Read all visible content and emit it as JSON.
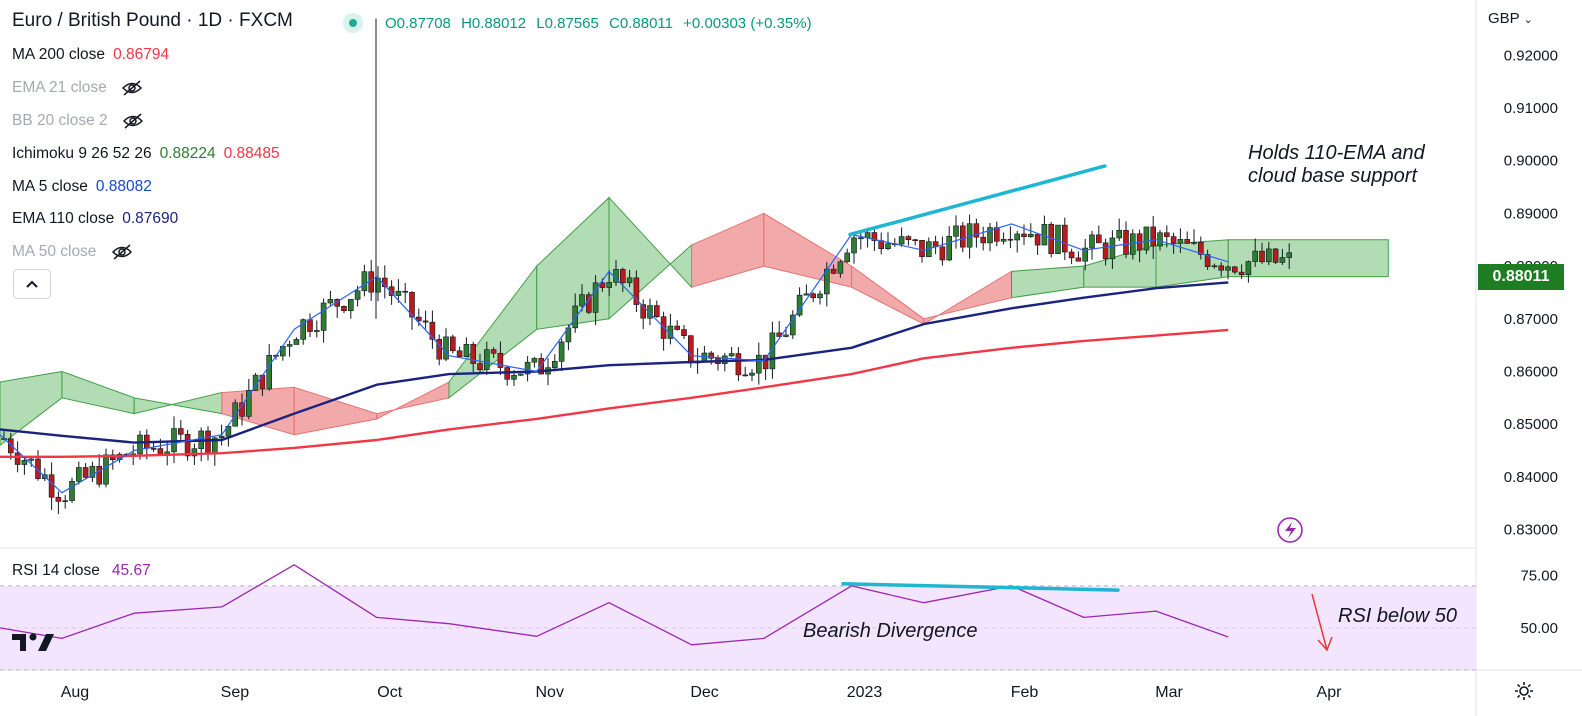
{
  "header": {
    "title": "Euro / British Pound · 1D · FXCM",
    "ohlc": [
      "O0.87708",
      "H0.88012",
      "L0.87565",
      "C0.88011",
      "+0.00303 (+0.35%)"
    ],
    "currency": "GBP"
  },
  "indicators": [
    {
      "label": "MA 200 close",
      "values": [
        "0.86794"
      ],
      "colors": [
        "#f23645"
      ],
      "hidden": false
    },
    {
      "label": "EMA 21 close",
      "values": [],
      "hidden": true
    },
    {
      "label": "BB 20 close 2",
      "values": [],
      "hidden": true
    },
    {
      "label": "Ichimoku 9 26 52 26",
      "values": [
        "0.88224",
        "0.88485"
      ],
      "colors": [
        "#2e7d32",
        "#f23645"
      ],
      "hidden": false
    },
    {
      "label": "MA 5 close",
      "values": [
        "0.88082"
      ],
      "colors": [
        "#1848cc"
      ],
      "hidden": false
    },
    {
      "label": "EMA 110 close",
      "values": [
        "0.87690"
      ],
      "colors": [
        "#1a237e"
      ],
      "hidden": false
    },
    {
      "label": "MA 50 close",
      "values": [],
      "hidden": true
    }
  ],
  "rsi": {
    "label": "RSI 14 close",
    "value": "45.67",
    "color": "#9c27b0"
  },
  "annotations": {
    "top_right": "Holds 110-EMA and\ncloud base support",
    "divergence": "Bearish Divergence",
    "rsi_note": "RSI below 50"
  },
  "last_price": "0.88011",
  "colors": {
    "up": "#089981",
    "candle_up": "#2e7d32",
    "candle_down": "#b71c1c",
    "ma200": "#f23645",
    "ema110": "#1a237e",
    "ma5": "#2962ff",
    "cloud_bull": "#a5d6a7",
    "cloud_bear": "#ef9a9a",
    "trendline": "#1fb6d4",
    "rsi": "#9c27b0",
    "rsi_band": "#f3e5fd",
    "last_price_bg": "#1e7d22"
  },
  "chart_data": {
    "type": "line",
    "title": "Euro / British Pound · 1D · FXCM",
    "x_ticks": [
      "Aug",
      "Sep",
      "Oct",
      "Nov",
      "Dec",
      "2023",
      "Feb",
      "Mar",
      "Apr"
    ],
    "y_ticks": [
      "0.92000",
      "0.91000",
      "0.90000",
      "0.89000",
      "0.88000",
      "0.87000",
      "0.86000",
      "0.85000",
      "0.84000",
      "0.83000"
    ],
    "ylim": [
      0.8265,
      0.9305
    ],
    "rsi_ticks": [
      "75.00",
      "50.00"
    ],
    "rsi_ylim": [
      30,
      88
    ],
    "x_dates": [
      "2022-07-20",
      "2022-08-01",
      "2022-08-15",
      "2022-09-01",
      "2022-09-15",
      "2022-10-01",
      "2022-10-15",
      "2022-11-01",
      "2022-11-15",
      "2022-12-01",
      "2022-12-15",
      "2023-01-01",
      "2023-01-15",
      "2023-02-01",
      "2023-02-15",
      "2023-03-01",
      "2023-03-15"
    ],
    "series": [
      {
        "name": "MA 200 close",
        "values": [
          0.8438,
          0.8438,
          0.844,
          0.8445,
          0.8455,
          0.847,
          0.849,
          0.851,
          0.853,
          0.855,
          0.857,
          0.8595,
          0.8625,
          0.8645,
          0.8658,
          0.8668,
          0.8679
        ]
      },
      {
        "name": "EMA 110 close",
        "values": [
          0.849,
          0.8478,
          0.8465,
          0.847,
          0.852,
          0.8575,
          0.8595,
          0.86,
          0.8612,
          0.8618,
          0.8622,
          0.8645,
          0.869,
          0.872,
          0.874,
          0.8758,
          0.8769
        ]
      },
      {
        "name": "MA 5 close",
        "values": [
          0.848,
          0.837,
          0.845,
          0.848,
          0.868,
          0.878,
          0.863,
          0.86,
          0.879,
          0.863,
          0.862,
          0.886,
          0.883,
          0.888,
          0.883,
          0.885,
          0.8808
        ]
      },
      {
        "name": "RSI 14 close",
        "values": [
          50,
          45,
          57,
          60,
          80,
          55,
          52,
          46,
          62,
          42,
          45,
          70,
          62,
          70,
          55,
          58,
          45.67
        ]
      }
    ]
  }
}
